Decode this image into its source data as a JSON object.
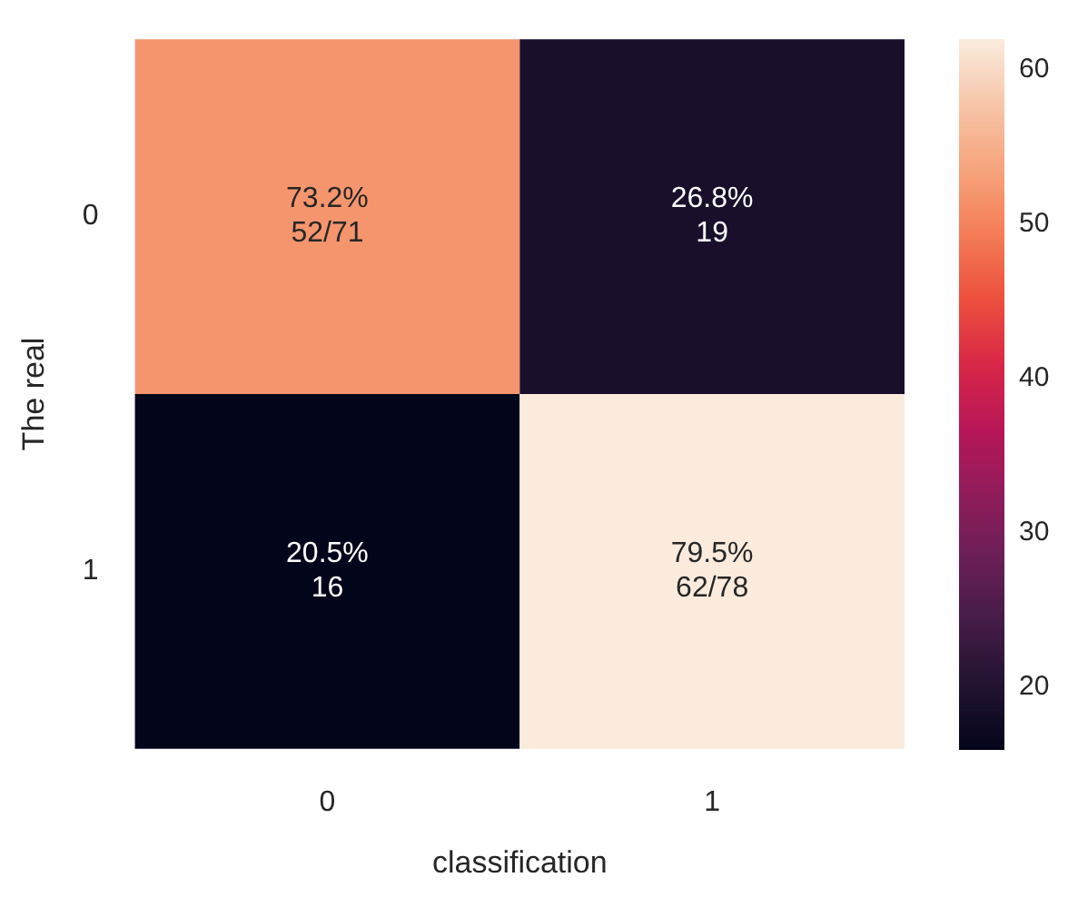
{
  "chart_data": {
    "type": "heatmap",
    "xlabel": "classification",
    "ylabel": "The real",
    "categories": [
      "0",
      "1"
    ],
    "y_categories": [
      "0",
      "1"
    ],
    "cells": [
      [
        52,
        19
      ],
      [
        16,
        62
      ]
    ],
    "cell_labels": [
      [
        "73.2%\n52/71",
        "26.8%\n19"
      ],
      [
        "20.5%\n16",
        "79.5%\n62/78"
      ]
    ],
    "clim": [
      16,
      62
    ],
    "cticks": [
      20,
      30,
      40,
      50,
      60
    ]
  }
}
